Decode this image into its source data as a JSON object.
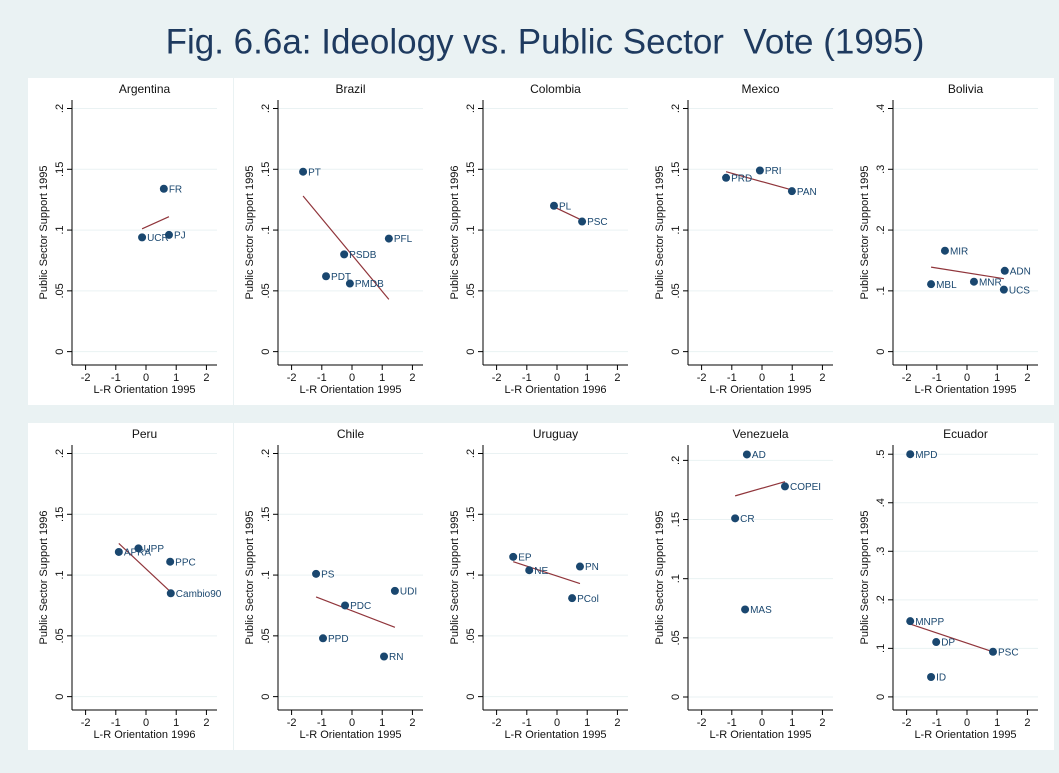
{
  "title": "Fig. 6.6a: Ideology vs. Public Sector  Vote (1995)",
  "chart_data": [
    {
      "type": "scatter",
      "title": "Argentina",
      "xlabel": "L-R Orientation 1995",
      "ylabel": "Public Sector Support 1995",
      "x": [
        0.59,
        -0.13,
        0.76
      ],
      "values": [
        0.134,
        0.094,
        0.096
      ],
      "point_labels": [
        "FR",
        "UCR",
        "PJ"
      ],
      "color": "#1a476f",
      "fit": {
        "x": [
          -0.13,
          0.76
        ],
        "values": [
          0.101,
          0.111
        ],
        "color": "#90353b"
      },
      "xlim": [
        -2.45,
        2.35
      ],
      "ylim": [
        -0.011,
        0.207
      ],
      "xticks": [
        -2,
        -1,
        0,
        1,
        2
      ],
      "yticks": [
        0,
        {
          "value": 0.05,
          "label": ".05"
        },
        {
          "value": 0.1,
          "label": ".1"
        },
        {
          "value": 0.15,
          "label": ".15"
        },
        {
          "value": 0.2,
          "label": ".2"
        }
      ],
      "grid": true
    },
    {
      "type": "scatter",
      "title": "Brazil",
      "xlabel": "L-R Orientation 1995",
      "ylabel": "Public Sector Support 1995",
      "x": [
        -1.62,
        1.22,
        -0.26,
        -0.86,
        -0.07
      ],
      "values": [
        0.148,
        0.093,
        0.08,
        0.062,
        0.056
      ],
      "point_labels": [
        "PT",
        "PFL",
        "PSDB",
        "PDT",
        "PMDB"
      ],
      "color": "#1a476f",
      "fit": {
        "x": [
          -1.62,
          1.22
        ],
        "values": [
          0.128,
          0.043
        ],
        "color": "#90353b"
      },
      "xlim": [
        -2.45,
        2.35
      ],
      "ylim": [
        -0.011,
        0.207
      ],
      "xticks": [
        -2,
        -1,
        0,
        1,
        2
      ],
      "yticks": [
        0,
        {
          "value": 0.05,
          "label": ".05"
        },
        {
          "value": 0.1,
          "label": ".1"
        },
        {
          "value": 0.15,
          "label": ".15"
        },
        {
          "value": 0.2,
          "label": ".2"
        }
      ],
      "grid": true
    },
    {
      "type": "scatter",
      "title": "Colombia",
      "xlabel": "L-R Orientation 1996",
      "ylabel": "Public Sector Support 1996",
      "x": [
        -0.1,
        0.83
      ],
      "values": [
        0.12,
        0.107
      ],
      "point_labels": [
        "PL",
        "PSC"
      ],
      "color": "#1a476f",
      "fit": {
        "x": [
          -0.1,
          0.83
        ],
        "values": [
          0.119,
          0.108
        ],
        "color": "#90353b"
      },
      "xlim": [
        -2.45,
        2.35
      ],
      "ylim": [
        -0.011,
        0.207
      ],
      "xticks": [
        -2,
        -1,
        0,
        1,
        2
      ],
      "yticks": [
        0,
        {
          "value": 0.05,
          "label": ".05"
        },
        {
          "value": 0.1,
          "label": ".1"
        },
        {
          "value": 0.15,
          "label": ".15"
        },
        {
          "value": 0.2,
          "label": ".2"
        }
      ],
      "grid": true
    },
    {
      "type": "scatter",
      "title": "Mexico",
      "xlabel": "L-R Orientation 1995",
      "ylabel": "Public Sector Support 1995",
      "x": [
        -1.19,
        -0.07,
        0.99
      ],
      "values": [
        0.143,
        0.149,
        0.132
      ],
      "point_labels": [
        "PRD",
        "PRI",
        "PAN"
      ],
      "color": "#1a476f",
      "fit": {
        "x": [
          -1.19,
          0.99
        ],
        "values": [
          0.148,
          0.133
        ],
        "color": "#90353b"
      },
      "xlim": [
        -2.45,
        2.35
      ],
      "ylim": [
        -0.011,
        0.207
      ],
      "xticks": [
        -2,
        -1,
        0,
        1,
        2
      ],
      "yticks": [
        0,
        {
          "value": 0.05,
          "label": ".05"
        },
        {
          "value": 0.1,
          "label": ".1"
        },
        {
          "value": 0.15,
          "label": ".15"
        },
        {
          "value": 0.2,
          "label": ".2"
        }
      ],
      "grid": true
    },
    {
      "type": "scatter",
      "title": "Bolivia",
      "xlabel": "L-R Orientation 1995",
      "ylabel": "Public Sector Support 1995",
      "x": [
        -0.73,
        1.25,
        -1.19,
        0.23,
        1.22
      ],
      "values": [
        0.166,
        0.133,
        0.111,
        0.115,
        0.102
      ],
      "point_labels": [
        "MIR",
        "ADN",
        "MBL",
        "MNR",
        "UCS"
      ],
      "color": "#1a476f",
      "fit": {
        "x": [
          -1.19,
          1.22
        ],
        "values": [
          0.139,
          0.12
        ],
        "color": "#90353b"
      },
      "xlim": [
        -2.45,
        2.35
      ],
      "ylim": [
        -0.022,
        0.414
      ],
      "xticks": [
        -2,
        -1,
        0,
        1,
        2
      ],
      "yticks": [
        0,
        {
          "value": 0.1,
          "label": ".1"
        },
        {
          "value": 0.2,
          "label": ".2"
        },
        {
          "value": 0.3,
          "label": ".3"
        },
        {
          "value": 0.4,
          "label": ".4"
        }
      ],
      "grid": true
    },
    {
      "type": "scatter",
      "title": "Peru",
      "xlabel": "L-R Orientation 1996",
      "ylabel": "Public Sector Support 1996",
      "x": [
        -0.9,
        -0.25,
        0.8,
        0.82
      ],
      "values": [
        0.119,
        0.122,
        0.111,
        0.085
      ],
      "point_labels": [
        "APRA",
        "UPP",
        "PPC",
        "Cambio90"
      ],
      "color": "#1a476f",
      "fit": {
        "x": [
          -0.9,
          0.82
        ],
        "values": [
          0.126,
          0.086
        ],
        "color": "#90353b"
      },
      "xlim": [
        -2.45,
        2.35
      ],
      "ylim": [
        -0.011,
        0.207
      ],
      "xticks": [
        -2,
        -1,
        0,
        1,
        2
      ],
      "yticks": [
        0,
        {
          "value": 0.05,
          "label": ".05"
        },
        {
          "value": 0.1,
          "label": ".1"
        },
        {
          "value": 0.15,
          "label": ".15"
        },
        {
          "value": 0.2,
          "label": ".2"
        }
      ],
      "grid": true
    },
    {
      "type": "scatter",
      "title": "Chile",
      "xlabel": "L-R Orientation 1995",
      "ylabel": "Public Sector Support 1995",
      "x": [
        -1.19,
        1.42,
        -0.23,
        -0.96,
        1.06
      ],
      "values": [
        0.101,
        0.087,
        0.075,
        0.048,
        0.033
      ],
      "point_labels": [
        "PS",
        "UDI",
        "PDC",
        "PPD",
        "RN"
      ],
      "color": "#1a476f",
      "fit": {
        "x": [
          -1.19,
          1.42
        ],
        "values": [
          0.082,
          0.057
        ],
        "color": "#90353b"
      },
      "xlim": [
        -2.45,
        2.35
      ],
      "ylim": [
        -0.011,
        0.207
      ],
      "xticks": [
        -2,
        -1,
        0,
        1,
        2
      ],
      "yticks": [
        0,
        {
          "value": 0.05,
          "label": ".05"
        },
        {
          "value": 0.1,
          "label": ".1"
        },
        {
          "value": 0.15,
          "label": ".15"
        },
        {
          "value": 0.2,
          "label": ".2"
        }
      ],
      "grid": true
    },
    {
      "type": "scatter",
      "title": "Uruguay",
      "xlabel": "L-R Orientation 1995",
      "ylabel": "Public Sector Support 1995",
      "x": [
        -1.45,
        -0.92,
        0.76,
        0.5
      ],
      "values": [
        0.115,
        0.104,
        0.107,
        0.081
      ],
      "point_labels": [
        "EP",
        "NE",
        "PN",
        "PCol"
      ],
      "color": "#1a476f",
      "fit": {
        "x": [
          -1.45,
          0.76
        ],
        "values": [
          0.111,
          0.093
        ],
        "color": "#90353b"
      },
      "xlim": [
        -2.45,
        2.35
      ],
      "ylim": [
        -0.011,
        0.207
      ],
      "xticks": [
        -2,
        -1,
        0,
        1,
        2
      ],
      "yticks": [
        0,
        {
          "value": 0.05,
          "label": ".05"
        },
        {
          "value": 0.1,
          "label": ".1"
        },
        {
          "value": 0.15,
          "label": ".15"
        },
        {
          "value": 0.2,
          "label": ".2"
        }
      ],
      "grid": true
    },
    {
      "type": "scatter",
      "title": "Venezuela",
      "xlabel": "L-R Orientation 1995",
      "ylabel": "Public Sector Support 1995",
      "x": [
        -0.5,
        0.76,
        -0.89,
        -0.56
      ],
      "values": [
        0.205,
        0.178,
        0.151,
        0.074
      ],
      "point_labels": [
        "AD",
        "COPEI",
        "CR",
        "MAS"
      ],
      "color": "#1a476f",
      "fit": {
        "x": [
          -0.89,
          0.76
        ],
        "values": [
          0.17,
          0.182
        ],
        "color": "#90353b"
      },
      "xlim": [
        -2.45,
        2.35
      ],
      "ylim": [
        -0.011,
        0.213
      ],
      "xticks": [
        -2,
        -1,
        0,
        1,
        2
      ],
      "yticks": [
        0,
        {
          "value": 0.05,
          "label": ".05"
        },
        {
          "value": 0.1,
          "label": ".1"
        },
        {
          "value": 0.15,
          "label": ".15"
        },
        {
          "value": 0.2,
          "label": ".2"
        }
      ],
      "grid": true
    },
    {
      "type": "scatter",
      "title": "Ecuador",
      "xlabel": "L-R Orientation 1995",
      "ylabel": "Public Sector Support 1995",
      "x": [
        -1.88,
        -1.88,
        -1.02,
        0.86,
        -1.19
      ],
      "values": [
        0.5,
        0.156,
        0.113,
        0.093,
        0.041
      ],
      "point_labels": [
        "MPD",
        "MNPP",
        "DP",
        "PSC",
        "ID"
      ],
      "color": "#1a476f",
      "fit": {
        "x": [
          -1.88,
          0.86
        ],
        "values": [
          0.15,
          0.093
        ],
        "color": "#90353b"
      },
      "xlim": [
        -2.45,
        2.35
      ],
      "ylim": [
        -0.027,
        0.519
      ],
      "xticks": [
        -2,
        -1,
        0,
        1,
        2
      ],
      "yticks": [
        0,
        {
          "value": 0.1,
          "label": ".1"
        },
        {
          "value": 0.2,
          "label": ".2"
        },
        {
          "value": 0.3,
          "label": ".3"
        },
        {
          "value": 0.4,
          "label": ".4"
        },
        {
          "value": 0.5,
          "label": ".5"
        }
      ],
      "grid": true
    }
  ]
}
